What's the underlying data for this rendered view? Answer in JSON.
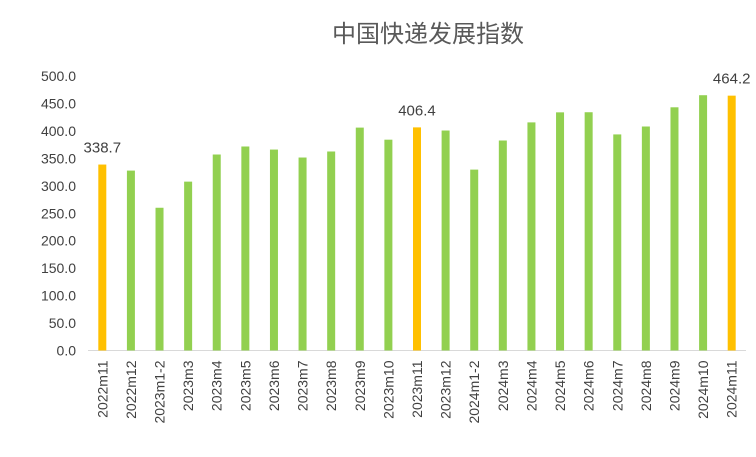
{
  "chart_data": {
    "type": "bar",
    "title": "中国快递发展指数",
    "xlabel": "",
    "ylabel": "",
    "ylim": [
      0,
      500
    ],
    "yticks": [
      "0.0",
      "50.0",
      "100.0",
      "150.0",
      "200.0",
      "250.0",
      "300.0",
      "350.0",
      "400.0",
      "450.0",
      "500.0"
    ],
    "grid": false,
    "legend": "none",
    "categories": [
      "2022m11",
      "2022m12",
      "2023m1-2",
      "2023m3",
      "2023m4",
      "2023m5",
      "2023m6",
      "2023m7",
      "2023m8",
      "2023m9",
      "2023m10",
      "2023m11",
      "2023m12",
      "2024m1-2",
      "2024m3",
      "2024m4",
      "2024m5",
      "2024m6",
      "2024m7",
      "2024m8",
      "2024m9",
      "2024m10",
      "2024m11"
    ],
    "values": [
      338.7,
      327.7,
      260,
      307.6,
      357,
      371.6,
      366,
      351.5,
      362.5,
      406,
      384,
      406.4,
      400.7,
      329.5,
      382.5,
      415.5,
      433.8,
      434,
      393.6,
      408,
      443,
      465,
      464.2
    ],
    "highlighted": [
      0,
      11,
      22
    ],
    "data_labels": {
      "0": "338.7",
      "11": "406.4",
      "22": "464.2"
    },
    "colors": {
      "bar": "#92D050",
      "highlight": "#FFC000",
      "axis": "#D9D9D9"
    }
  }
}
